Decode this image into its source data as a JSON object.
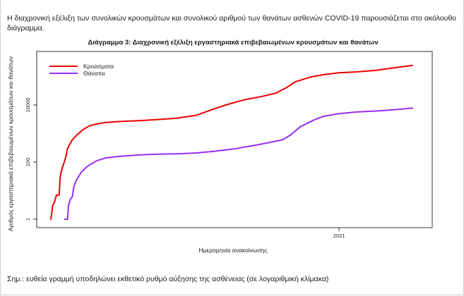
{
  "document": {
    "intro_text": "Η διαχρονική εξέλιξη των συνολικών κρουσμάτων και συνολικού αριθμού των θανάτων ασθενών COVID-19 παρουσιάζεται στο ακόλουθο διάγραμμα.",
    "footnote": "Σημ.: ευθεία γραμμή υποδηλώνει εκθετικό ρυθμό αύξησης της ασθένειας (σε λογαριθμική κλίμακα)"
  },
  "chart_data": {
    "type": "line",
    "title": "Διάγραμμα 3: Διαχρονική εξέλιξη εργαστηριακά επιβεβαιωμένων κρουσμάτων και θανάτων",
    "xlabel": "Ημερομηνία ανακοίνωσης",
    "ylabel": "Αριθμός εργαστηριακά επιβεβαιωμένων κρουσμάτων και θανάτων",
    "y_scale": "log",
    "ylim": [
      1,
      400000
    ],
    "yticks": [
      1,
      100,
      10000
    ],
    "ytick_labels": [
      "1",
      "100",
      "10000"
    ],
    "xlim": [
      "2020-02-26",
      "2021-03-27"
    ],
    "xticks": [
      "2021-01-01"
    ],
    "xtick_labels": [
      "2021"
    ],
    "grid": false,
    "legend_position": "top-left",
    "series": [
      {
        "name": "Κρούσματα",
        "color": "#ee0000",
        "points": [
          [
            "2020-02-26",
            1
          ],
          [
            "2020-02-28",
            3
          ],
          [
            "2020-03-01",
            4
          ],
          [
            "2020-03-03",
            7
          ],
          [
            "2020-03-06",
            7
          ],
          [
            "2020-03-07",
            30
          ],
          [
            "2020-03-09",
            60
          ],
          [
            "2020-03-11",
            90
          ],
          [
            "2020-03-13",
            150
          ],
          [
            "2020-03-15",
            300
          ],
          [
            "2020-03-17",
            400
          ],
          [
            "2020-03-20",
            600
          ],
          [
            "2020-03-25",
            900
          ],
          [
            "2020-04-01",
            1400
          ],
          [
            "2020-04-08",
            1900
          ],
          [
            "2020-04-15",
            2150
          ],
          [
            "2020-04-25",
            2450
          ],
          [
            "2020-05-10",
            2650
          ],
          [
            "2020-06-01",
            2850
          ],
          [
            "2020-06-20",
            3100
          ],
          [
            "2020-07-10",
            3450
          ],
          [
            "2020-07-31",
            4300
          ],
          [
            "2020-08-15",
            6500
          ],
          [
            "2020-09-01",
            10000
          ],
          [
            "2020-09-20",
            15000
          ],
          [
            "2020-10-10",
            20000
          ],
          [
            "2020-10-25",
            26000
          ],
          [
            "2020-11-05",
            40000
          ],
          [
            "2020-11-15",
            65000
          ],
          [
            "2020-12-01",
            95000
          ],
          [
            "2020-12-15",
            115000
          ],
          [
            "2021-01-01",
            135000
          ],
          [
            "2021-01-20",
            145000
          ],
          [
            "2021-02-10",
            165000
          ],
          [
            "2021-03-01",
            200000
          ],
          [
            "2021-03-21",
            245000
          ]
        ]
      },
      {
        "name": "Θάνατοι",
        "color": "#9b2cf0",
        "points": [
          [
            "2020-03-12",
            1
          ],
          [
            "2020-03-15",
            1
          ],
          [
            "2020-03-16",
            3
          ],
          [
            "2020-03-18",
            5
          ],
          [
            "2020-03-20",
            6
          ],
          [
            "2020-03-22",
            15
          ],
          [
            "2020-03-25",
            25
          ],
          [
            "2020-03-30",
            45
          ],
          [
            "2020-04-05",
            70
          ],
          [
            "2020-04-15",
            110
          ],
          [
            "2020-04-25",
            140
          ],
          [
            "2020-05-10",
            160
          ],
          [
            "2020-06-01",
            180
          ],
          [
            "2020-06-20",
            190
          ],
          [
            "2020-07-10",
            195
          ],
          [
            "2020-08-01",
            210
          ],
          [
            "2020-08-20",
            240
          ],
          [
            "2020-09-10",
            290
          ],
          [
            "2020-10-01",
            380
          ],
          [
            "2020-10-20",
            500
          ],
          [
            "2020-11-01",
            600
          ],
          [
            "2020-11-10",
            900
          ],
          [
            "2020-11-20",
            1700
          ],
          [
            "2020-12-05",
            3000
          ],
          [
            "2020-12-15",
            4000
          ],
          [
            "2021-01-01",
            5000
          ],
          [
            "2021-01-20",
            5700
          ],
          [
            "2021-02-15",
            6300
          ],
          [
            "2021-03-05",
            7000
          ],
          [
            "2021-03-21",
            7800
          ]
        ]
      }
    ]
  }
}
